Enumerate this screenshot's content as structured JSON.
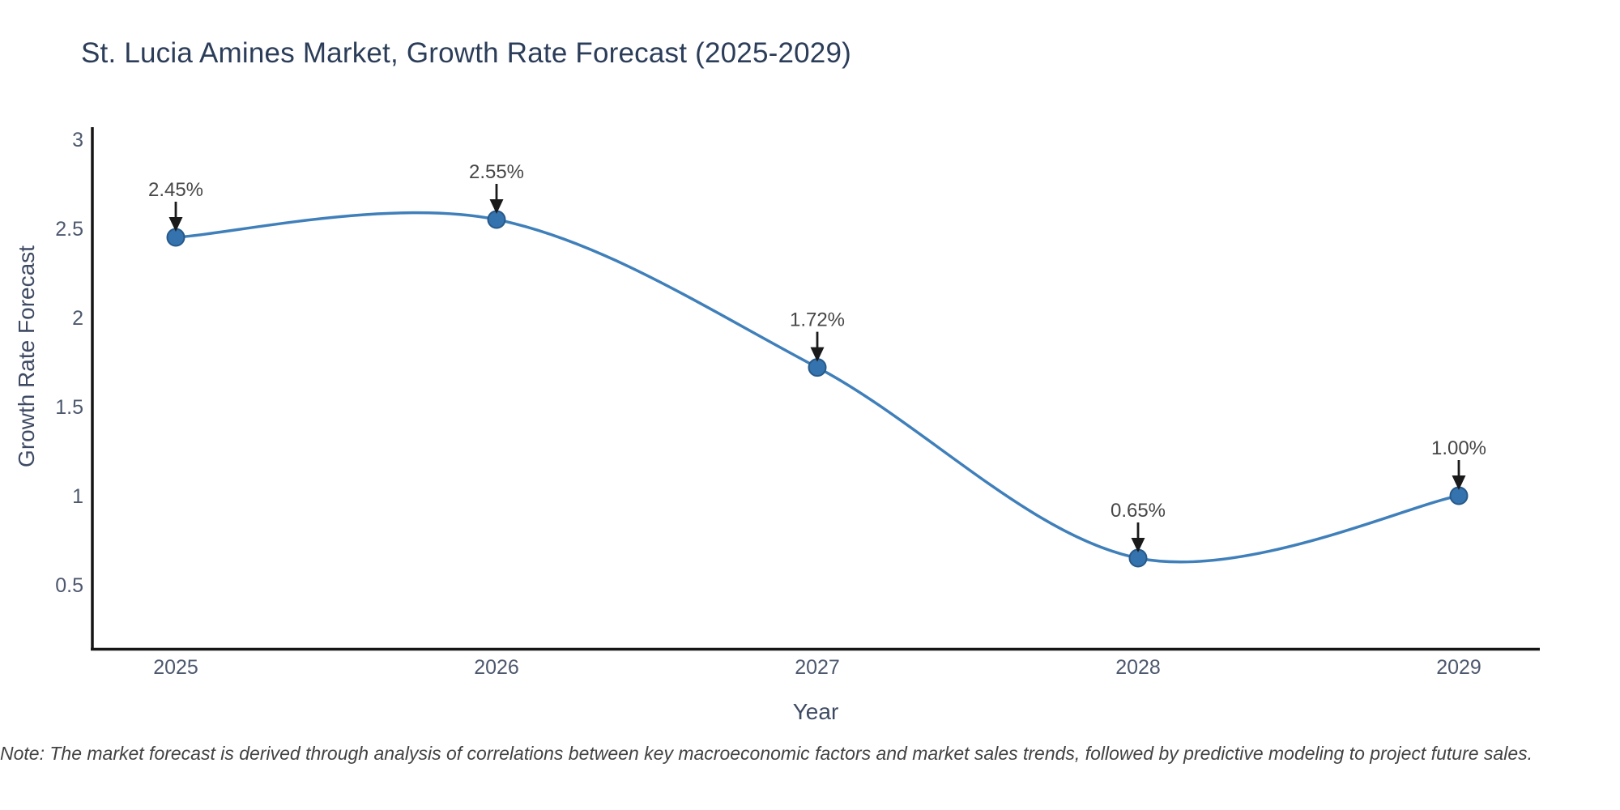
{
  "figure": {
    "title": "St. Lucia Amines Market, Growth Rate Forecast (2025-2029)",
    "note": "Note: The market forecast is derived through analysis of correlations between key macroeconomic factors and market sales trends, followed by predictive modeling to project future sales."
  },
  "chart_data": {
    "type": "line",
    "line_shape": "spline",
    "title": "St. Lucia Amines Market, Growth Rate Forecast (2025-2029)",
    "xlabel": "Year",
    "ylabel": "Growth Rate Forecast",
    "x": [
      2025,
      2026,
      2027,
      2028,
      2029
    ],
    "values": [
      2.45,
      2.55,
      1.72,
      0.65,
      1.0
    ],
    "point_labels": [
      "2.45%",
      "2.55%",
      "1.72%",
      "0.65%",
      "1.00%"
    ],
    "y_ticks": [
      3,
      2.5,
      2,
      1.5,
      1,
      0.5
    ],
    "ylim": [
      0.14,
      3.06
    ],
    "xlim": [
      2024.74,
      2029.25
    ],
    "grid": false,
    "legend": false,
    "markers": true,
    "annotations_with_arrows": true,
    "colors": {
      "line": "#3f7fba",
      "marker_fill": "#3573ae",
      "marker_edge": "#27598a",
      "axis_line": "#151515",
      "tick_label": "#4d586e",
      "axis_title": "#3e4a63",
      "annotation_text": "#474747",
      "arrow": "#1a1a1a",
      "title_text": "#2b3d59",
      "background": "#ffffff"
    }
  }
}
